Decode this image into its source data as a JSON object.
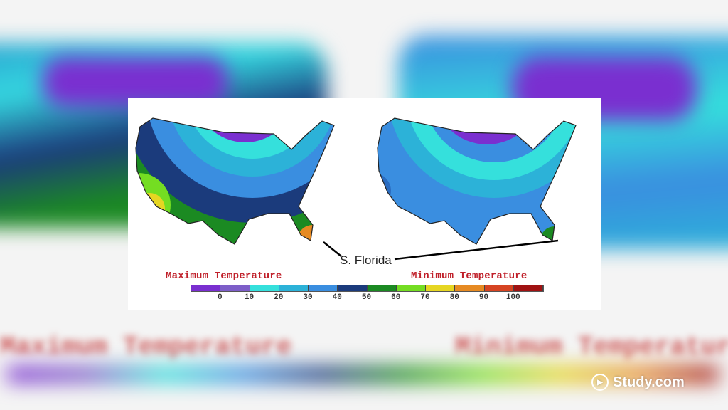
{
  "maps": [
    {
      "title": "Maximum Temperature"
    },
    {
      "title": "Minimum Temperature"
    }
  ],
  "annotation": "S. Florida",
  "legend": {
    "ticks": [
      "0",
      "10",
      "20",
      "30",
      "40",
      "50",
      "60",
      "70",
      "80",
      "90",
      "100"
    ],
    "colors": [
      "#7a2fd0",
      "#7d5ec8",
      "#35e0dc",
      "#2cb2d8",
      "#3a8ee0",
      "#1b3b7c",
      "#1b8a22",
      "#74dd22",
      "#e6d622",
      "#e68a22",
      "#d64422",
      "#a01212"
    ]
  },
  "brand": {
    "logo_text": "Study.com"
  }
}
